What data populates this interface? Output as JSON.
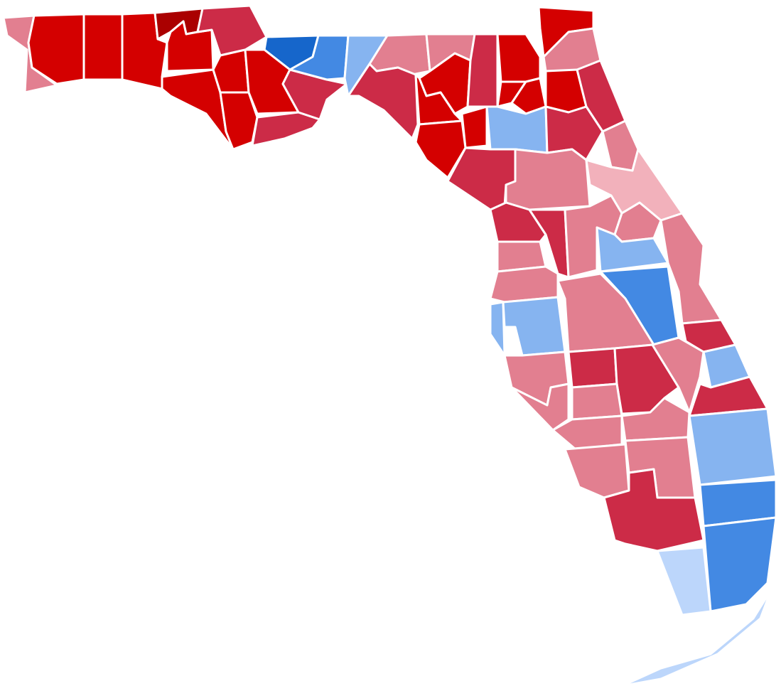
{
  "map": {
    "regions": [
      {
        "color": "#e27f90"
      },
      {
        "color": "#d40000"
      },
      {
        "color": "#d40000"
      },
      {
        "color": "#d40000"
      },
      {
        "color": "#aa0000"
      },
      {
        "color": "#d40000"
      },
      {
        "color": "#cc2b47"
      },
      {
        "color": "#d40000"
      },
      {
        "color": "#d40000"
      },
      {
        "color": "#d40000"
      },
      {
        "color": "#1666cb"
      },
      {
        "color": "#d40000"
      },
      {
        "color": "#cc2b47"
      },
      {
        "color": "#cc2b47"
      },
      {
        "color": "#4389e3"
      },
      {
        "color": "#86b4f0"
      },
      {
        "color": "#e27f90"
      },
      {
        "color": "#cc2b47"
      },
      {
        "color": "#e27f90"
      },
      {
        "color": "#d40000"
      },
      {
        "color": "#d40000"
      },
      {
        "color": "#cc2b47"
      },
      {
        "color": "#d40000"
      },
      {
        "color": "#d40000"
      },
      {
        "color": "#e27f90"
      },
      {
        "color": "#d40000"
      },
      {
        "color": "#d40000"
      },
      {
        "color": "#d40000"
      },
      {
        "color": "#cc2b47"
      },
      {
        "color": "#d40000"
      },
      {
        "color": "#d40000"
      },
      {
        "color": "#86b4f0"
      },
      {
        "color": "#cc2b47"
      },
      {
        "color": "#e27f90"
      },
      {
        "color": "#cc2b47"
      },
      {
        "color": "#e27f90"
      },
      {
        "color": "#f2b1bb"
      },
      {
        "color": "#cc2b47"
      },
      {
        "color": "#cc2b47"
      },
      {
        "color": "#e27f90"
      },
      {
        "color": "#e27f90"
      },
      {
        "color": "#e27f90"
      },
      {
        "color": "#e27f90"
      },
      {
        "color": "#86b4f0"
      },
      {
        "color": "#86b4f0"
      },
      {
        "color": "#86b4f0"
      },
      {
        "color": "#4389e3"
      },
      {
        "color": "#e27f90"
      },
      {
        "color": "#e27f90"
      },
      {
        "color": "#cc2b47"
      },
      {
        "color": "#e27f90"
      },
      {
        "color": "#cc2b47"
      },
      {
        "color": "#cc2b47"
      },
      {
        "color": "#e27f90"
      },
      {
        "color": "#86b4f0"
      },
      {
        "color": "#cc2b47"
      },
      {
        "color": "#e27f90"
      },
      {
        "color": "#e27f90"
      },
      {
        "color": "#e27f90"
      },
      {
        "color": "#e27f90"
      },
      {
        "color": "#e27f90"
      },
      {
        "color": "#e27f90"
      },
      {
        "color": "#86b4f0"
      },
      {
        "color": "#cc2b47"
      },
      {
        "color": "#4389e3"
      },
      {
        "color": "#4389e3"
      },
      {
        "color": "#bcd6fb"
      },
      {
        "color": "#bcd6fb"
      }
    ]
  }
}
